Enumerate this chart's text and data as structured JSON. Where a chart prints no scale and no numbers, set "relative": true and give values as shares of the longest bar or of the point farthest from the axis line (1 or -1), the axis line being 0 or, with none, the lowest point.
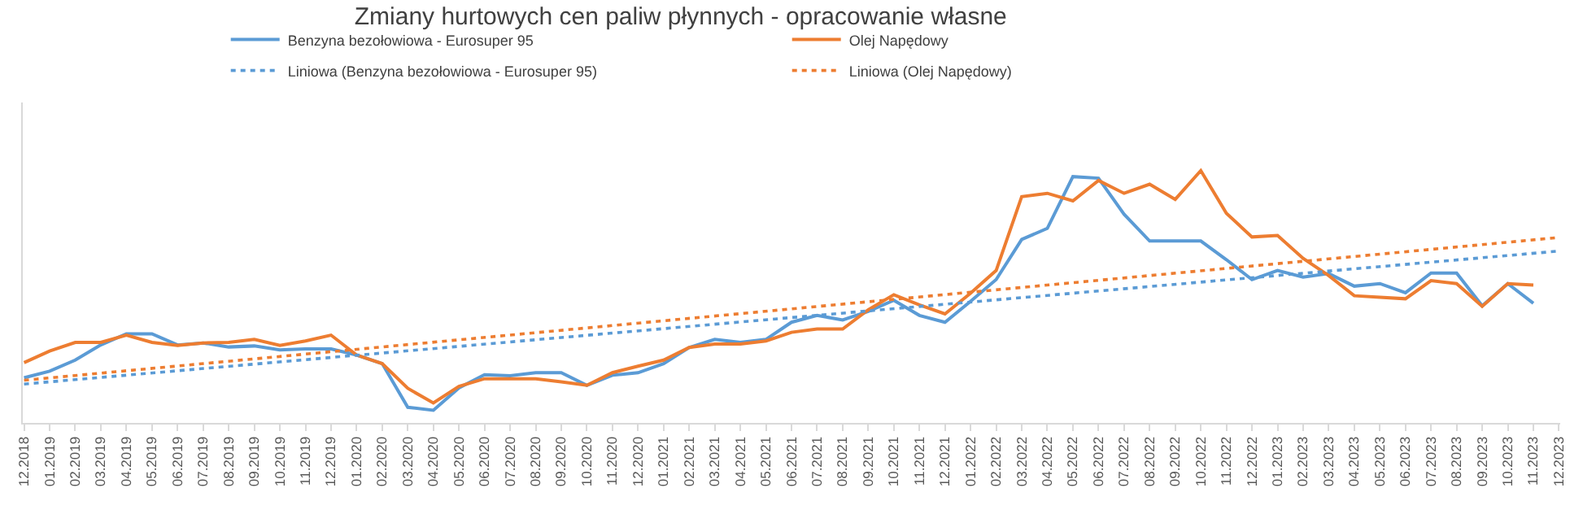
{
  "chart_data": {
    "type": "line",
    "title": "Zmiany hurtowych cen paliw płynnych - opracowanie własne",
    "relative": true,
    "grid": false,
    "legend": "top",
    "tick_labels": "x",
    "categories": [
      "12.2018",
      "01.2019",
      "02.2019",
      "03.2019",
      "04.2019",
      "05.2019",
      "06.2019",
      "07.2019",
      "08.2019",
      "09.2019",
      "10.2019",
      "11.2019",
      "12.2019",
      "01.2020",
      "02.2020",
      "03.2020",
      "04.2020",
      "05.2020",
      "06.2020",
      "07.2020",
      "08.2020",
      "09.2020",
      "10.2020",
      "11.2020",
      "12.2020",
      "01.2021",
      "02.2021",
      "03.2021",
      "04.2021",
      "05.2021",
      "06.2021",
      "07.2021",
      "08.2021",
      "09.2021",
      "10.2021",
      "11.2021",
      "12.2021",
      "01.2022",
      "02.2022",
      "03.2022",
      "04.2022",
      "05.2022",
      "06.2022",
      "07.2022",
      "08.2022",
      "09.2022",
      "10.2022",
      "11.2022",
      "12.2022",
      "01.2023",
      "02.2023",
      "03.2023",
      "04.2023",
      "05.2023",
      "06.2023",
      "07.2023",
      "08.2023",
      "09.2023",
      "10.2023",
      "11.2023",
      "12.2023"
    ],
    "series": [
      {
        "name": "Benzyna bezołowiowa - Eurosuper 95",
        "color": "#5b9bd5",
        "line_style": "solid",
        "values": [
          0.179,
          0.205,
          0.249,
          0.309,
          0.353,
          0.353,
          0.309,
          0.317,
          0.301,
          0.305,
          0.289,
          0.293,
          0.293,
          0.269,
          0.235,
          0.062,
          0.05,
          0.139,
          0.191,
          0.187,
          0.199,
          0.199,
          0.149,
          0.189,
          0.199,
          0.235,
          0.299,
          0.331,
          0.319,
          0.331,
          0.399,
          0.426,
          0.408,
          0.442,
          0.486,
          0.426,
          0.399,
          0.482,
          0.568,
          0.727,
          0.771,
          0.976,
          0.97,
          0.827,
          0.721,
          0.721,
          0.721,
          0.647,
          0.568,
          0.604,
          0.578,
          0.592,
          0.542,
          0.552,
          0.516,
          0.594,
          0.594,
          0.464,
          0.552,
          0.474,
          null
        ]
      },
      {
        "name": "Olej Napędowy",
        "color": "#ed7d31",
        "line_style": "solid",
        "values": [
          0.239,
          0.285,
          0.319,
          0.319,
          0.348,
          0.319,
          0.307,
          0.317,
          0.319,
          0.331,
          0.307,
          0.325,
          0.348,
          0.269,
          0.235,
          0.137,
          0.079,
          0.145,
          0.175,
          0.175,
          0.175,
          0.163,
          0.149,
          0.199,
          0.225,
          0.249,
          0.299,
          0.313,
          0.313,
          0.325,
          0.359,
          0.372,
          0.372,
          0.448,
          0.508,
          0.468,
          0.432,
          0.514,
          0.604,
          0.897,
          0.91,
          0.88,
          0.961,
          0.91,
          0.946,
          0.886,
          1,
          0.831,
          0.737,
          0.743,
          0.652,
          0.584,
          0.504,
          0.498,
          0.492,
          0.564,
          0.552,
          0.462,
          0.552,
          0.546,
          null
        ]
      },
      {
        "name": "Liniowa (Benzyna bezołowiowa - Eurosuper 95)",
        "color": "#5b9bd5",
        "line_style": "dotted",
        "x": [
          "12.2018",
          "12.2023"
        ],
        "values": [
          0.154,
          0.681
        ]
      },
      {
        "name": "Liniowa (Olej Napędowy)",
        "color": "#ed7d31",
        "line_style": "dotted",
        "x": [
          "12.2018",
          "12.2023"
        ],
        "values": [
          0.169,
          0.735
        ]
      }
    ]
  }
}
